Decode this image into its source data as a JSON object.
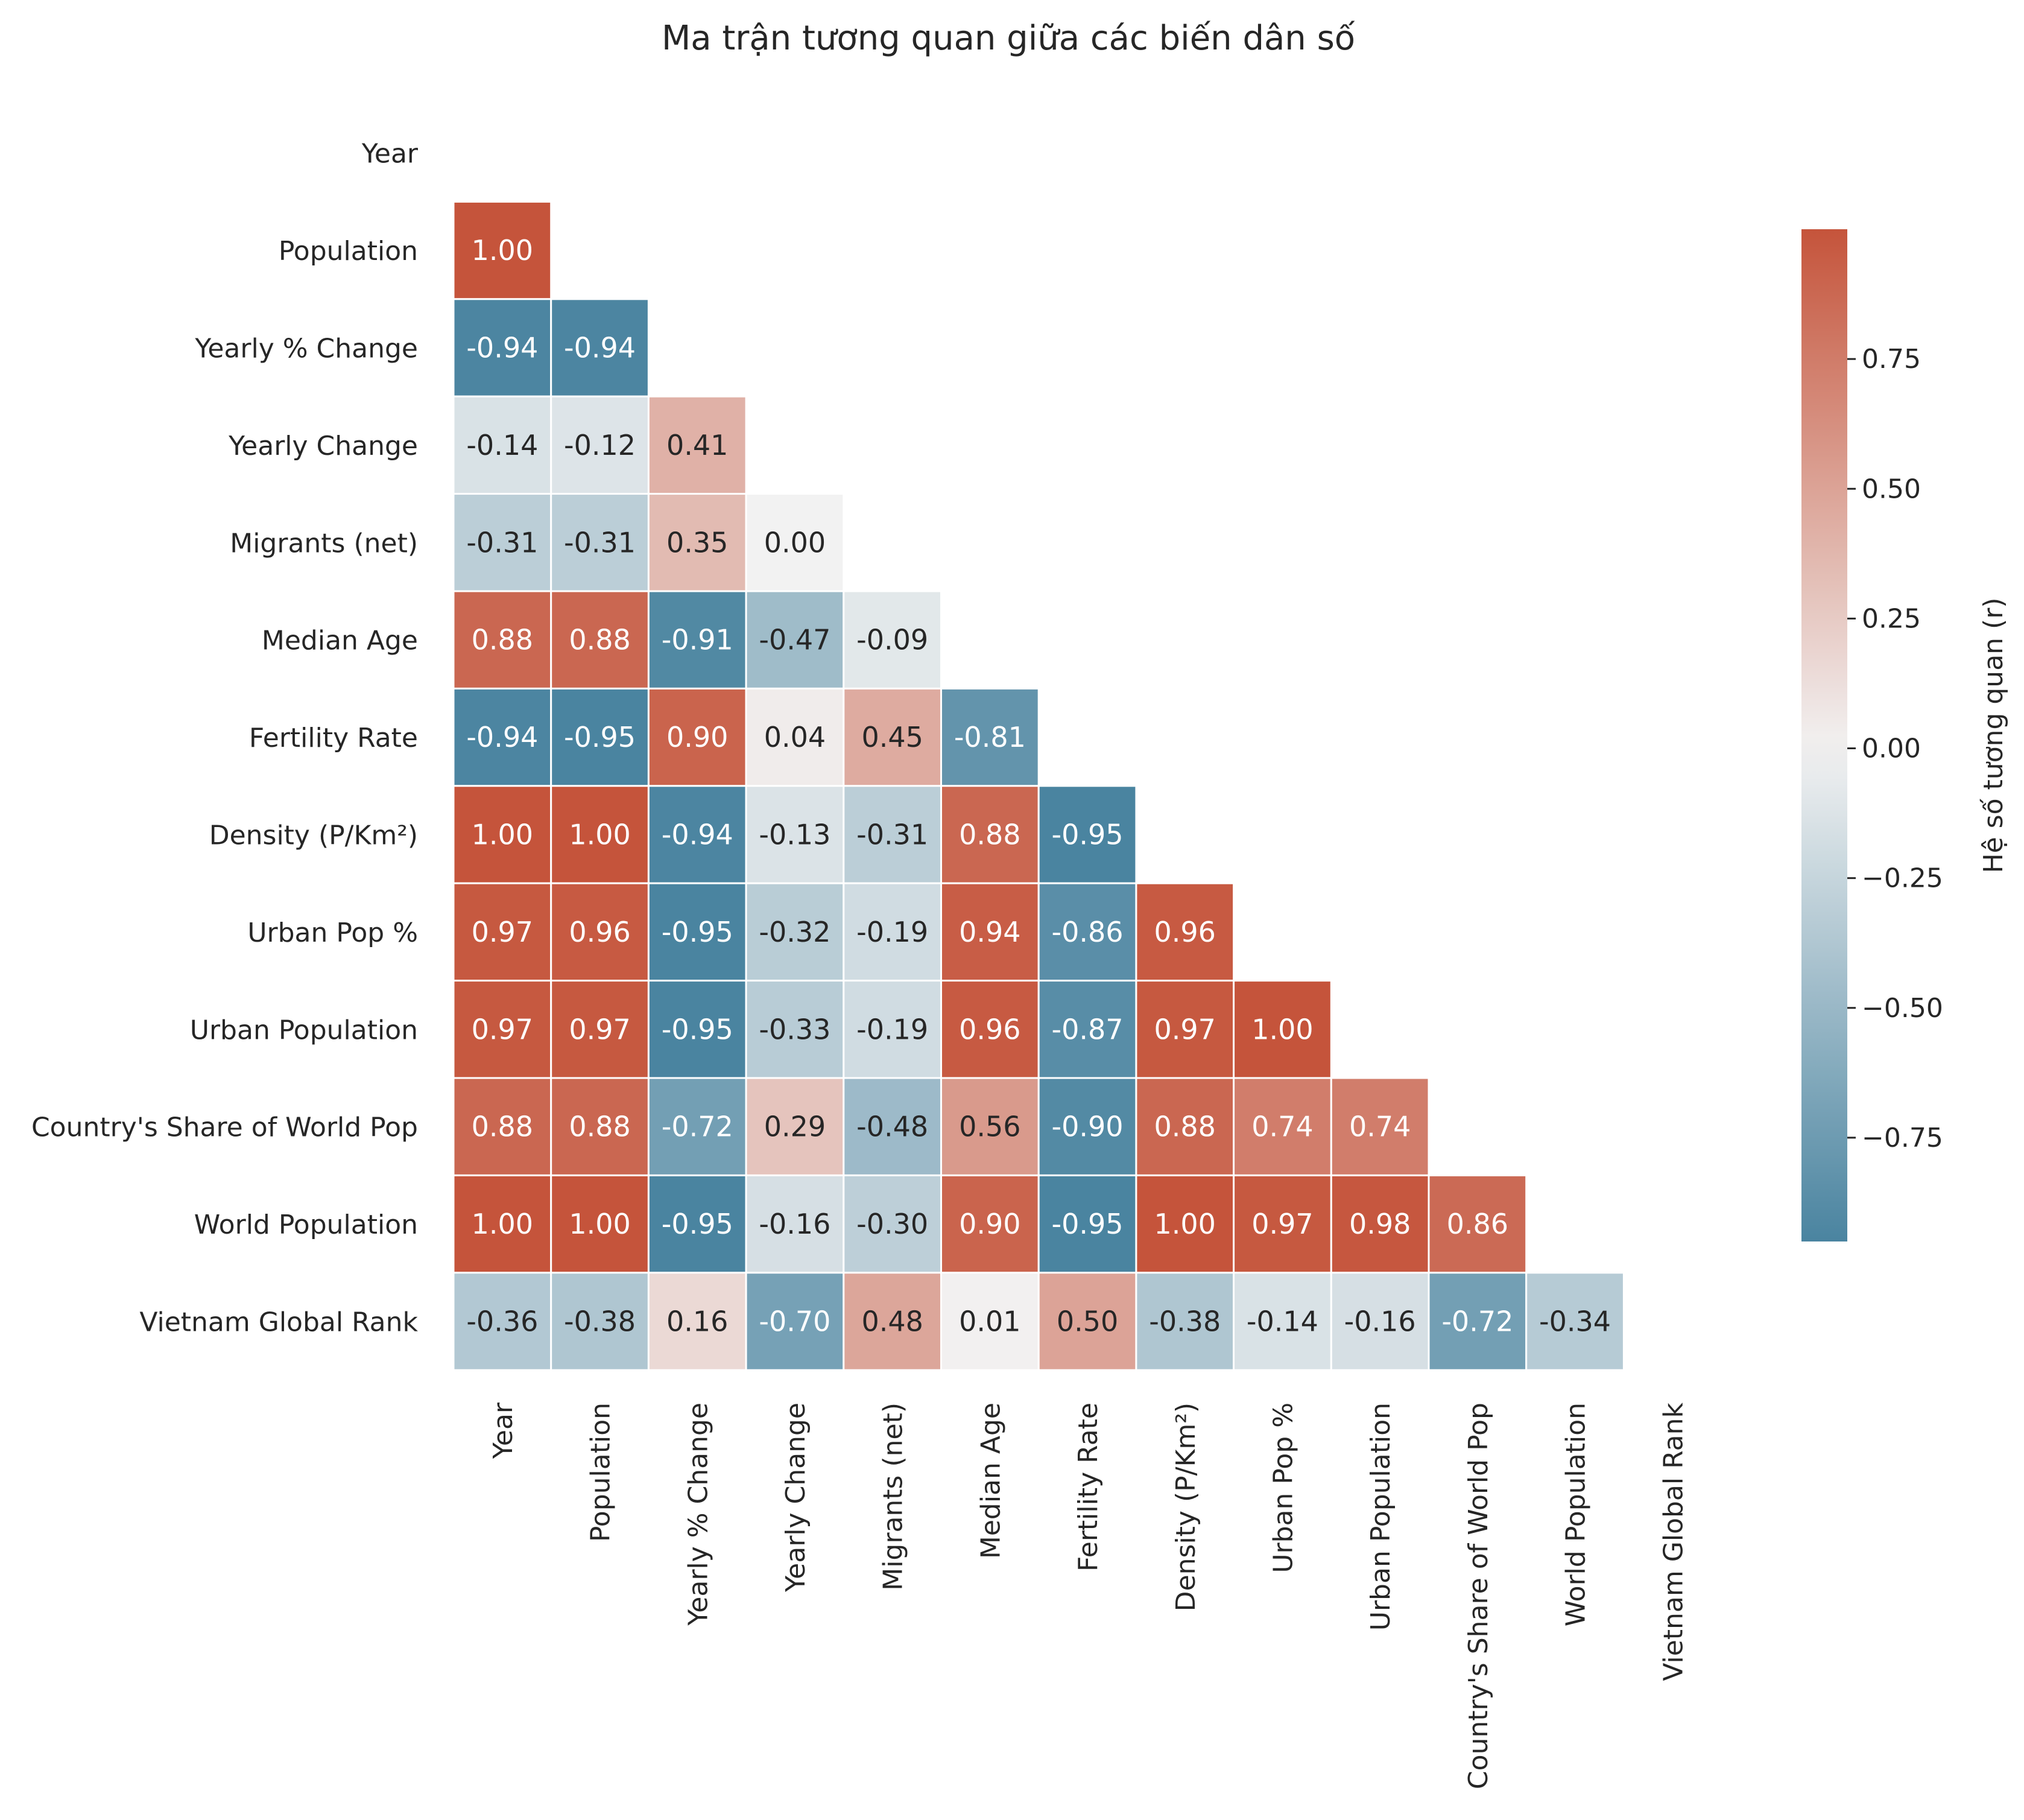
{
  "chart_data": {
    "type": "heatmap",
    "title": "Ma trận tương quan giữa các biến dân số",
    "variables": [
      "Year",
      "Population",
      "Yearly % Change",
      "Yearly Change",
      "Migrants (net)",
      "Median Age",
      "Fertility Rate",
      "Density (P/Km²)",
      "Urban Pop %",
      "Urban Population",
      "Country's Share of World Pop",
      "World Population",
      "Vietnam Global Rank"
    ],
    "mask": "upper-triangle-including-diagonal",
    "lower_triangle_values": [
      [],
      [
        1.0
      ],
      [
        -0.94,
        -0.94
      ],
      [
        -0.14,
        -0.12,
        0.41
      ],
      [
        -0.31,
        -0.31,
        0.35,
        -0.0
      ],
      [
        0.88,
        0.88,
        -0.91,
        -0.47,
        -0.09
      ],
      [
        -0.94,
        -0.95,
        0.9,
        0.04,
        0.45,
        -0.81
      ],
      [
        1.0,
        1.0,
        -0.94,
        -0.13,
        -0.31,
        0.88,
        -0.95
      ],
      [
        0.97,
        0.96,
        -0.95,
        -0.32,
        -0.19,
        0.94,
        -0.86,
        0.96
      ],
      [
        0.97,
        0.97,
        -0.95,
        -0.33,
        -0.19,
        0.96,
        -0.87,
        0.97,
        1.0
      ],
      [
        0.88,
        0.88,
        -0.72,
        0.29,
        -0.48,
        0.56,
        -0.9,
        0.88,
        0.74,
        0.74
      ],
      [
        1.0,
        1.0,
        -0.95,
        -0.16,
        -0.3,
        0.9,
        -0.95,
        1.0,
        0.97,
        0.98,
        0.86
      ],
      [
        -0.36,
        -0.38,
        0.16,
        -0.7,
        0.48,
        0.01,
        0.5,
        -0.38,
        -0.14,
        -0.16,
        -0.72,
        -0.34
      ]
    ],
    "colorbar": {
      "label": "Hệ số tương quan (r)",
      "range": [
        -0.95,
        1.0
      ],
      "ticks": [
        0.75,
        0.5,
        0.25,
        0.0,
        -0.25,
        -0.5,
        -0.75
      ],
      "tick_labels": [
        "0.75",
        "0.50",
        "0.25",
        "0.00",
        "−0.25",
        "−0.50",
        "−0.75"
      ],
      "colors": {
        "negative": "#4a84a0",
        "neutral": "#f2f2f2",
        "positive": "#c5543b"
      }
    },
    "value_format": "2 decimals",
    "grid": false
  }
}
